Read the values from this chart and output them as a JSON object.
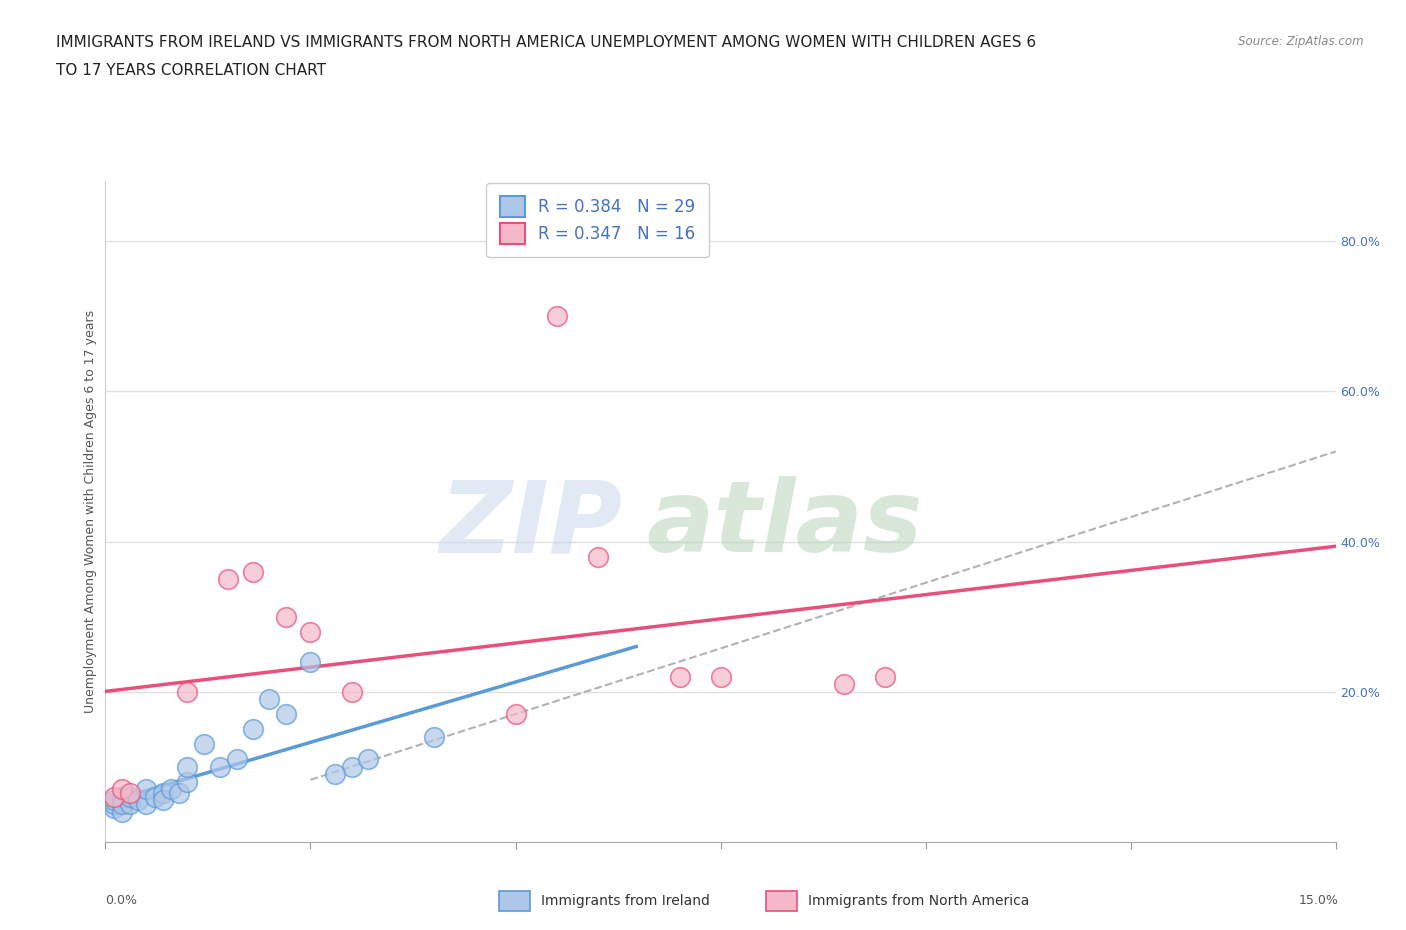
{
  "title_line1": "IMMIGRANTS FROM IRELAND VS IMMIGRANTS FROM NORTH AMERICA UNEMPLOYMENT AMONG WOMEN WITH CHILDREN AGES 6",
  "title_line2": "TO 17 YEARS CORRELATION CHART",
  "source": "Source: ZipAtlas.com",
  "ylabel": "Unemployment Among Women with Children Ages 6 to 17 years",
  "legend_label1": "Immigrants from Ireland",
  "legend_label2": "Immigrants from North America",
  "R1": 0.384,
  "N1": 29,
  "R2": 0.347,
  "N2": 16,
  "color_ireland": "#aec6e8",
  "color_ireland_line": "#5b9bd5",
  "color_na": "#f4b8c8",
  "color_na_line": "#e8507a",
  "xlim": [
    0.0,
    0.15
  ],
  "ylim": [
    0.0,
    0.88
  ],
  "x_ireland": [
    0.001,
    0.001,
    0.001,
    0.002,
    0.002,
    0.002,
    0.003,
    0.003,
    0.004,
    0.005,
    0.005,
    0.006,
    0.007,
    0.007,
    0.008,
    0.009,
    0.01,
    0.01,
    0.012,
    0.014,
    0.016,
    0.018,
    0.02,
    0.022,
    0.025,
    0.03,
    0.04,
    0.032,
    0.028
  ],
  "y_ireland": [
    0.045,
    0.05,
    0.055,
    0.04,
    0.06,
    0.05,
    0.05,
    0.06,
    0.055,
    0.05,
    0.07,
    0.06,
    0.065,
    0.055,
    0.07,
    0.065,
    0.08,
    0.1,
    0.13,
    0.1,
    0.11,
    0.15,
    0.19,
    0.17,
    0.24,
    0.1,
    0.14,
    0.11,
    0.09
  ],
  "x_na": [
    0.001,
    0.002,
    0.003,
    0.01,
    0.015,
    0.018,
    0.022,
    0.025,
    0.03,
    0.05,
    0.055,
    0.07,
    0.075,
    0.09,
    0.095,
    0.06
  ],
  "y_na": [
    0.06,
    0.07,
    0.065,
    0.2,
    0.35,
    0.36,
    0.3,
    0.28,
    0.2,
    0.17,
    0.7,
    0.22,
    0.22,
    0.21,
    0.22,
    0.38
  ],
  "background_color": "#ffffff",
  "grid_color": "#e0e0e0",
  "title_fontsize": 11,
  "axis_label_fontsize": 9,
  "tick_fontsize": 9,
  "legend_fontsize": 12,
  "watermark_zip_color": "#c8d8ec",
  "watermark_atlas_color": "#b8d4b8",
  "watermark_alpha": 0.55
}
